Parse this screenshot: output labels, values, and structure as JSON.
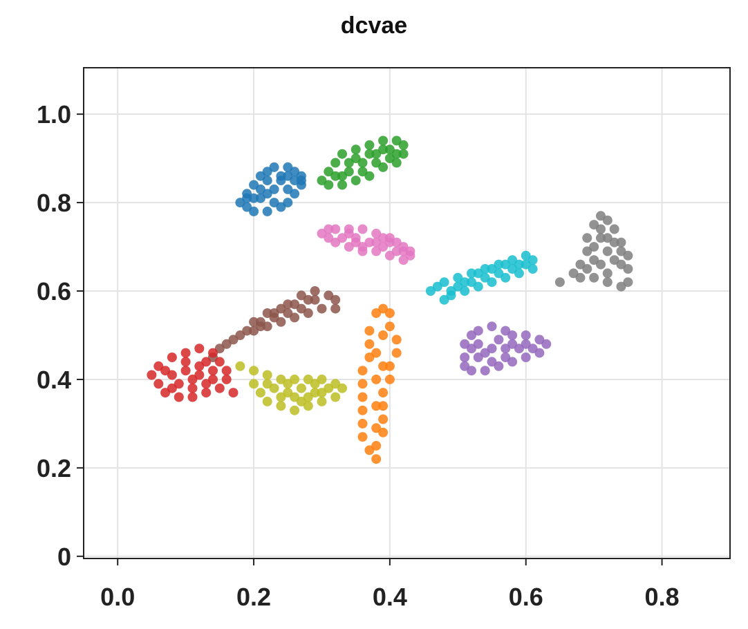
{
  "chart_data": {
    "type": "scatter",
    "title": "dcvae",
    "xlabel": "",
    "ylabel": "",
    "xlim": [
      -0.05,
      0.9
    ],
    "ylim": [
      -0.005,
      1.105
    ],
    "grid": true,
    "legend": "none",
    "x_ticks": [
      {
        "value": 0.0,
        "label": "0.0"
      },
      {
        "value": 0.2,
        "label": "0.2"
      },
      {
        "value": 0.4,
        "label": "0.4"
      },
      {
        "value": 0.6,
        "label": "0.6"
      },
      {
        "value": 0.8,
        "label": "0.8"
      }
    ],
    "y_ticks": [
      {
        "value": 0.0,
        "label": "0"
      },
      {
        "value": 0.2,
        "label": "0.2"
      },
      {
        "value": 0.4,
        "label": "0.4"
      },
      {
        "value": 0.6,
        "label": "0.6"
      },
      {
        "value": 0.8,
        "label": "0.8"
      },
      {
        "value": 1.0,
        "label": "1.0"
      }
    ],
    "series": [
      {
        "color": "#1f77b4",
        "points": [
          [
            0.18,
            0.8
          ],
          [
            0.19,
            0.82
          ],
          [
            0.2,
            0.84
          ],
          [
            0.21,
            0.86
          ],
          [
            0.22,
            0.87
          ],
          [
            0.23,
            0.88
          ],
          [
            0.25,
            0.88
          ],
          [
            0.26,
            0.87
          ],
          [
            0.27,
            0.86
          ],
          [
            0.27,
            0.84
          ],
          [
            0.26,
            0.82
          ],
          [
            0.25,
            0.8
          ],
          [
            0.24,
            0.79
          ],
          [
            0.22,
            0.78
          ],
          [
            0.2,
            0.78
          ],
          [
            0.19,
            0.79
          ],
          [
            0.21,
            0.81
          ],
          [
            0.23,
            0.83
          ],
          [
            0.24,
            0.85
          ],
          [
            0.22,
            0.85
          ],
          [
            0.25,
            0.83
          ],
          [
            0.21,
            0.83
          ],
          [
            0.23,
            0.8
          ],
          [
            0.26,
            0.85
          ],
          [
            0.2,
            0.81
          ],
          [
            0.24,
            0.86
          ],
          [
            0.22,
            0.82
          ],
          [
            0.25,
            0.86
          ],
          [
            0.19,
            0.81
          ],
          [
            0.27,
            0.85
          ]
        ]
      },
      {
        "color": "#2ca02c",
        "points": [
          [
            0.3,
            0.85
          ],
          [
            0.31,
            0.87
          ],
          [
            0.32,
            0.89
          ],
          [
            0.33,
            0.91
          ],
          [
            0.35,
            0.92
          ],
          [
            0.37,
            0.93
          ],
          [
            0.39,
            0.94
          ],
          [
            0.41,
            0.94
          ],
          [
            0.42,
            0.93
          ],
          [
            0.42,
            0.91
          ],
          [
            0.41,
            0.89
          ],
          [
            0.39,
            0.88
          ],
          [
            0.37,
            0.86
          ],
          [
            0.35,
            0.85
          ],
          [
            0.33,
            0.84
          ],
          [
            0.31,
            0.84
          ],
          [
            0.34,
            0.87
          ],
          [
            0.36,
            0.89
          ],
          [
            0.38,
            0.91
          ],
          [
            0.4,
            0.92
          ],
          [
            0.36,
            0.87
          ],
          [
            0.38,
            0.89
          ],
          [
            0.33,
            0.86
          ],
          [
            0.4,
            0.9
          ],
          [
            0.35,
            0.9
          ],
          [
            0.37,
            0.91
          ],
          [
            0.32,
            0.86
          ],
          [
            0.39,
            0.92
          ],
          [
            0.34,
            0.89
          ],
          [
            0.41,
            0.91
          ]
        ]
      },
      {
        "color": "#e377c2",
        "points": [
          [
            0.3,
            0.73
          ],
          [
            0.31,
            0.74
          ],
          [
            0.32,
            0.74
          ],
          [
            0.34,
            0.74
          ],
          [
            0.36,
            0.74
          ],
          [
            0.38,
            0.73
          ],
          [
            0.4,
            0.72
          ],
          [
            0.41,
            0.71
          ],
          [
            0.42,
            0.7
          ],
          [
            0.43,
            0.69
          ],
          [
            0.43,
            0.68
          ],
          [
            0.42,
            0.67
          ],
          [
            0.4,
            0.68
          ],
          [
            0.38,
            0.69
          ],
          [
            0.36,
            0.69
          ],
          [
            0.34,
            0.7
          ],
          [
            0.32,
            0.71
          ],
          [
            0.33,
            0.72
          ],
          [
            0.35,
            0.72
          ],
          [
            0.37,
            0.71
          ],
          [
            0.39,
            0.7
          ],
          [
            0.41,
            0.69
          ],
          [
            0.35,
            0.71
          ],
          [
            0.38,
            0.71
          ],
          [
            0.4,
            0.71
          ],
          [
            0.34,
            0.73
          ],
          [
            0.36,
            0.7
          ],
          [
            0.42,
            0.69
          ],
          [
            0.31,
            0.72
          ],
          [
            0.39,
            0.72
          ]
        ]
      },
      {
        "color": "#8c564b",
        "points": [
          [
            0.14,
            0.45
          ],
          [
            0.15,
            0.47
          ],
          [
            0.17,
            0.49
          ],
          [
            0.19,
            0.51
          ],
          [
            0.21,
            0.53
          ],
          [
            0.23,
            0.55
          ],
          [
            0.25,
            0.57
          ],
          [
            0.27,
            0.59
          ],
          [
            0.29,
            0.6
          ],
          [
            0.31,
            0.59
          ],
          [
            0.32,
            0.58
          ],
          [
            0.32,
            0.56
          ],
          [
            0.3,
            0.56
          ],
          [
            0.28,
            0.55
          ],
          [
            0.26,
            0.54
          ],
          [
            0.24,
            0.53
          ],
          [
            0.22,
            0.52
          ],
          [
            0.2,
            0.51
          ],
          [
            0.18,
            0.5
          ],
          [
            0.16,
            0.48
          ],
          [
            0.22,
            0.55
          ],
          [
            0.24,
            0.56
          ],
          [
            0.26,
            0.57
          ],
          [
            0.28,
            0.58
          ],
          [
            0.2,
            0.53
          ],
          [
            0.25,
            0.55
          ],
          [
            0.27,
            0.56
          ],
          [
            0.23,
            0.54
          ],
          [
            0.29,
            0.58
          ],
          [
            0.21,
            0.52
          ]
        ]
      },
      {
        "color": "#d62728",
        "points": [
          [
            0.05,
            0.41
          ],
          [
            0.06,
            0.43
          ],
          [
            0.08,
            0.45
          ],
          [
            0.1,
            0.46
          ],
          [
            0.12,
            0.47
          ],
          [
            0.14,
            0.46
          ],
          [
            0.15,
            0.44
          ],
          [
            0.16,
            0.42
          ],
          [
            0.16,
            0.4
          ],
          [
            0.15,
            0.38
          ],
          [
            0.13,
            0.37
          ],
          [
            0.11,
            0.36
          ],
          [
            0.09,
            0.36
          ],
          [
            0.07,
            0.37
          ],
          [
            0.06,
            0.39
          ],
          [
            0.08,
            0.41
          ],
          [
            0.1,
            0.42
          ],
          [
            0.12,
            0.43
          ],
          [
            0.14,
            0.42
          ],
          [
            0.11,
            0.4
          ],
          [
            0.13,
            0.39
          ],
          [
            0.09,
            0.39
          ],
          [
            0.07,
            0.42
          ],
          [
            0.1,
            0.44
          ],
          [
            0.12,
            0.41
          ],
          [
            0.14,
            0.4
          ],
          [
            0.08,
            0.38
          ],
          [
            0.11,
            0.38
          ],
          [
            0.13,
            0.44
          ],
          [
            0.17,
            0.37
          ]
        ]
      },
      {
        "color": "#bcbd22",
        "points": [
          [
            0.18,
            0.43
          ],
          [
            0.2,
            0.42
          ],
          [
            0.22,
            0.41
          ],
          [
            0.24,
            0.4
          ],
          [
            0.26,
            0.4
          ],
          [
            0.28,
            0.4
          ],
          [
            0.3,
            0.4
          ],
          [
            0.32,
            0.39
          ],
          [
            0.33,
            0.38
          ],
          [
            0.32,
            0.36
          ],
          [
            0.3,
            0.35
          ],
          [
            0.28,
            0.34
          ],
          [
            0.26,
            0.33
          ],
          [
            0.24,
            0.34
          ],
          [
            0.22,
            0.35
          ],
          [
            0.21,
            0.37
          ],
          [
            0.2,
            0.39
          ],
          [
            0.23,
            0.38
          ],
          [
            0.25,
            0.37
          ],
          [
            0.27,
            0.38
          ],
          [
            0.29,
            0.37
          ],
          [
            0.31,
            0.38
          ],
          [
            0.24,
            0.36
          ],
          [
            0.26,
            0.36
          ],
          [
            0.28,
            0.36
          ],
          [
            0.22,
            0.39
          ],
          [
            0.3,
            0.37
          ],
          [
            0.25,
            0.39
          ],
          [
            0.27,
            0.35
          ],
          [
            0.29,
            0.39
          ]
        ]
      },
      {
        "color": "#ff7f0e",
        "points": [
          [
            0.38,
            0.55
          ],
          [
            0.39,
            0.56
          ],
          [
            0.4,
            0.55
          ],
          [
            0.4,
            0.52
          ],
          [
            0.41,
            0.49
          ],
          [
            0.41,
            0.46
          ],
          [
            0.4,
            0.43
          ],
          [
            0.4,
            0.4
          ],
          [
            0.39,
            0.37
          ],
          [
            0.39,
            0.34
          ],
          [
            0.39,
            0.31
          ],
          [
            0.39,
            0.28
          ],
          [
            0.38,
            0.25
          ],
          [
            0.38,
            0.22
          ],
          [
            0.37,
            0.24
          ],
          [
            0.36,
            0.27
          ],
          [
            0.36,
            0.3
          ],
          [
            0.36,
            0.33
          ],
          [
            0.36,
            0.36
          ],
          [
            0.36,
            0.39
          ],
          [
            0.36,
            0.42
          ],
          [
            0.37,
            0.45
          ],
          [
            0.37,
            0.48
          ],
          [
            0.37,
            0.51
          ],
          [
            0.38,
            0.46
          ],
          [
            0.38,
            0.4
          ],
          [
            0.38,
            0.34
          ],
          [
            0.38,
            0.29
          ],
          [
            0.39,
            0.43
          ],
          [
            0.39,
            0.5
          ]
        ]
      },
      {
        "color": "#17becf",
        "points": [
          [
            0.46,
            0.6
          ],
          [
            0.47,
            0.61
          ],
          [
            0.48,
            0.62
          ],
          [
            0.5,
            0.63
          ],
          [
            0.52,
            0.64
          ],
          [
            0.54,
            0.65
          ],
          [
            0.56,
            0.66
          ],
          [
            0.58,
            0.67
          ],
          [
            0.6,
            0.68
          ],
          [
            0.61,
            0.67
          ],
          [
            0.61,
            0.65
          ],
          [
            0.59,
            0.64
          ],
          [
            0.57,
            0.63
          ],
          [
            0.55,
            0.62
          ],
          [
            0.53,
            0.61
          ],
          [
            0.51,
            0.6
          ],
          [
            0.49,
            0.59
          ],
          [
            0.48,
            0.58
          ],
          [
            0.52,
            0.62
          ],
          [
            0.54,
            0.63
          ],
          [
            0.56,
            0.64
          ],
          [
            0.58,
            0.65
          ],
          [
            0.5,
            0.61
          ],
          [
            0.53,
            0.64
          ],
          [
            0.55,
            0.65
          ],
          [
            0.57,
            0.66
          ],
          [
            0.59,
            0.66
          ],
          [
            0.51,
            0.62
          ],
          [
            0.49,
            0.6
          ],
          [
            0.6,
            0.66
          ]
        ]
      },
      {
        "color": "#9467bd",
        "points": [
          [
            0.51,
            0.43
          ],
          [
            0.51,
            0.45
          ],
          [
            0.51,
            0.48
          ],
          [
            0.52,
            0.5
          ],
          [
            0.53,
            0.51
          ],
          [
            0.55,
            0.52
          ],
          [
            0.57,
            0.51
          ],
          [
            0.58,
            0.5
          ],
          [
            0.6,
            0.5
          ],
          [
            0.62,
            0.49
          ],
          [
            0.63,
            0.48
          ],
          [
            0.62,
            0.46
          ],
          [
            0.6,
            0.45
          ],
          [
            0.58,
            0.44
          ],
          [
            0.56,
            0.43
          ],
          [
            0.54,
            0.42
          ],
          [
            0.52,
            0.42
          ],
          [
            0.53,
            0.45
          ],
          [
            0.55,
            0.47
          ],
          [
            0.57,
            0.47
          ],
          [
            0.59,
            0.47
          ],
          [
            0.55,
            0.44
          ],
          [
            0.57,
            0.45
          ],
          [
            0.53,
            0.48
          ],
          [
            0.54,
            0.46
          ],
          [
            0.56,
            0.49
          ],
          [
            0.58,
            0.48
          ],
          [
            0.6,
            0.48
          ],
          [
            0.52,
            0.47
          ],
          [
            0.61,
            0.47
          ]
        ]
      },
      {
        "color": "#7f7f7f",
        "points": [
          [
            0.67,
            0.64
          ],
          [
            0.68,
            0.66
          ],
          [
            0.69,
            0.69
          ],
          [
            0.69,
            0.72
          ],
          [
            0.7,
            0.75
          ],
          [
            0.71,
            0.77
          ],
          [
            0.72,
            0.76
          ],
          [
            0.73,
            0.74
          ],
          [
            0.74,
            0.71
          ],
          [
            0.75,
            0.68
          ],
          [
            0.75,
            0.65
          ],
          [
            0.75,
            0.62
          ],
          [
            0.74,
            0.61
          ],
          [
            0.72,
            0.62
          ],
          [
            0.7,
            0.63
          ],
          [
            0.68,
            0.63
          ],
          [
            0.71,
            0.66
          ],
          [
            0.72,
            0.69
          ],
          [
            0.71,
            0.72
          ],
          [
            0.73,
            0.67
          ],
          [
            0.7,
            0.7
          ],
          [
            0.72,
            0.64
          ],
          [
            0.74,
            0.66
          ],
          [
            0.7,
            0.67
          ],
          [
            0.73,
            0.71
          ],
          [
            0.71,
            0.74
          ],
          [
            0.69,
            0.65
          ],
          [
            0.72,
            0.72
          ],
          [
            0.74,
            0.69
          ],
          [
            0.65,
            0.62
          ]
        ]
      }
    ]
  }
}
